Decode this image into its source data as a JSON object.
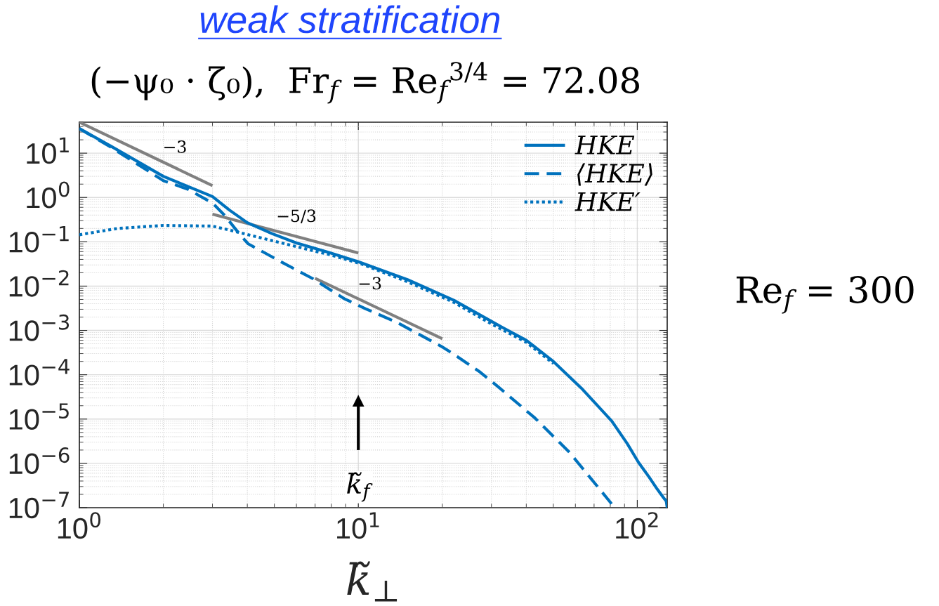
{
  "chart_data": {
    "type": "line",
    "title": "weak stratification",
    "subtitle": "(−ψ₀ · ζ₀),  Fr$_{f}$ = Re$_{f}$$^{3/4}$ = 72.08",
    "xlabel": "k̃$_{⊥}$",
    "log": "xy",
    "xlim": [
      1,
      128
    ],
    "ylim": [
      1e-07,
      50
    ],
    "xticks": [
      {
        "value": 1,
        "label": "10$^{0}$"
      },
      {
        "value": 10,
        "label": "10$^{1}$"
      },
      {
        "value": 100,
        "label": "10$^{2}$"
      }
    ],
    "yticks": [
      {
        "value": 1e-07,
        "label": "10$^{−7}$"
      },
      {
        "value": 1e-06,
        "label": "10$^{−6}$"
      },
      {
        "value": 1e-05,
        "label": "10$^{−5}$"
      },
      {
        "value": 0.0001,
        "label": "10$^{−4}$"
      },
      {
        "value": 0.001,
        "label": "10$^{−3}$"
      },
      {
        "value": 0.01,
        "label": "10$^{−2}$"
      },
      {
        "value": 0.1,
        "label": "10$^{−1}$"
      },
      {
        "value": 1,
        "label": "10$^{0}$"
      },
      {
        "value": 10,
        "label": "10$^{1}$"
      }
    ],
    "grid": true,
    "legend": "top right",
    "series": [
      {
        "name": "HKE",
        "color": "#0072bd",
        "line_style": "solid",
        "x": [
          1,
          1.3,
          2,
          3,
          3.45,
          4,
          4.9,
          6,
          7.8,
          10,
          15,
          22,
          30,
          33,
          40,
          50,
          63,
          81,
          92,
          101,
          110,
          118,
          124,
          127,
          128
        ],
        "values": [
          36,
          14.3,
          3.0,
          1.05,
          0.52,
          0.27,
          0.153,
          0.094,
          0.058,
          0.0355,
          0.014,
          0.0048,
          0.0016,
          0.00115,
          0.0006,
          0.0002,
          5e-05,
          9e-06,
          2.8e-06,
          1.05e-06,
          5e-07,
          2.6e-07,
          1.7e-07,
          1.4e-07,
          1e-07
        ]
      },
      {
        "name": "⟨HKE⟩",
        "color": "#0072bd",
        "line_style": "dashed",
        "x": [
          1,
          1.3,
          2,
          2.44,
          3,
          3.3,
          3.8,
          4.03,
          5.3,
          6.9,
          8.9,
          10.6,
          13.8,
          19.8,
          22,
          27.3,
          32,
          43,
          57,
          73,
          83
        ],
        "values": [
          36,
          13.5,
          2.4,
          1.55,
          0.75,
          0.41,
          0.135,
          0.09,
          0.035,
          0.0145,
          0.0052,
          0.0031,
          0.0015,
          0.00044,
          0.00029,
          0.000115,
          5.1e-05,
          1.05e-05,
          1.8e-06,
          2.7e-07,
          1e-07
        ]
      },
      {
        "name": "HKE′",
        "color": "#0072bd",
        "line_style": "dotted",
        "x": [
          1,
          1.37,
          2,
          3,
          3.6,
          4.35,
          6,
          8,
          10.2,
          15,
          22,
          30,
          40,
          50
        ],
        "values": [
          0.144,
          0.2,
          0.234,
          0.226,
          0.173,
          0.128,
          0.078,
          0.05,
          0.032,
          0.0125,
          0.0043,
          0.0014,
          0.00054,
          0.00018
        ]
      },
      {
        "color": "#808080",
        "x": [
          1,
          3
        ],
        "values": [
          50,
          1.85
        ]
      },
      {
        "color": "#808080",
        "x": [
          3,
          10
        ],
        "values": [
          0.42,
          0.056
        ]
      },
      {
        "color": "#808080",
        "x": [
          7,
          20
        ],
        "values": [
          0.015,
          0.00065
        ]
      },
      {
        "color": "#000000",
        "x": [
          10,
          10
        ],
        "values": [
          2e-06,
          2.6e-05
        ],
        "marker": "triangle"
      }
    ],
    "annotations": [
      {
        "text": "−3",
        "x": 2.2,
        "y": 4.7
      },
      {
        "text": "−5/3",
        "x": 6,
        "y": 0.13
      },
      {
        "text": "−3",
        "x": 11,
        "y": 0.0039
      },
      {
        "text": "k̃$_{f}$",
        "x": 10,
        "y": 2e-06
      },
      "Re$_{f}$ = 300"
    ]
  }
}
